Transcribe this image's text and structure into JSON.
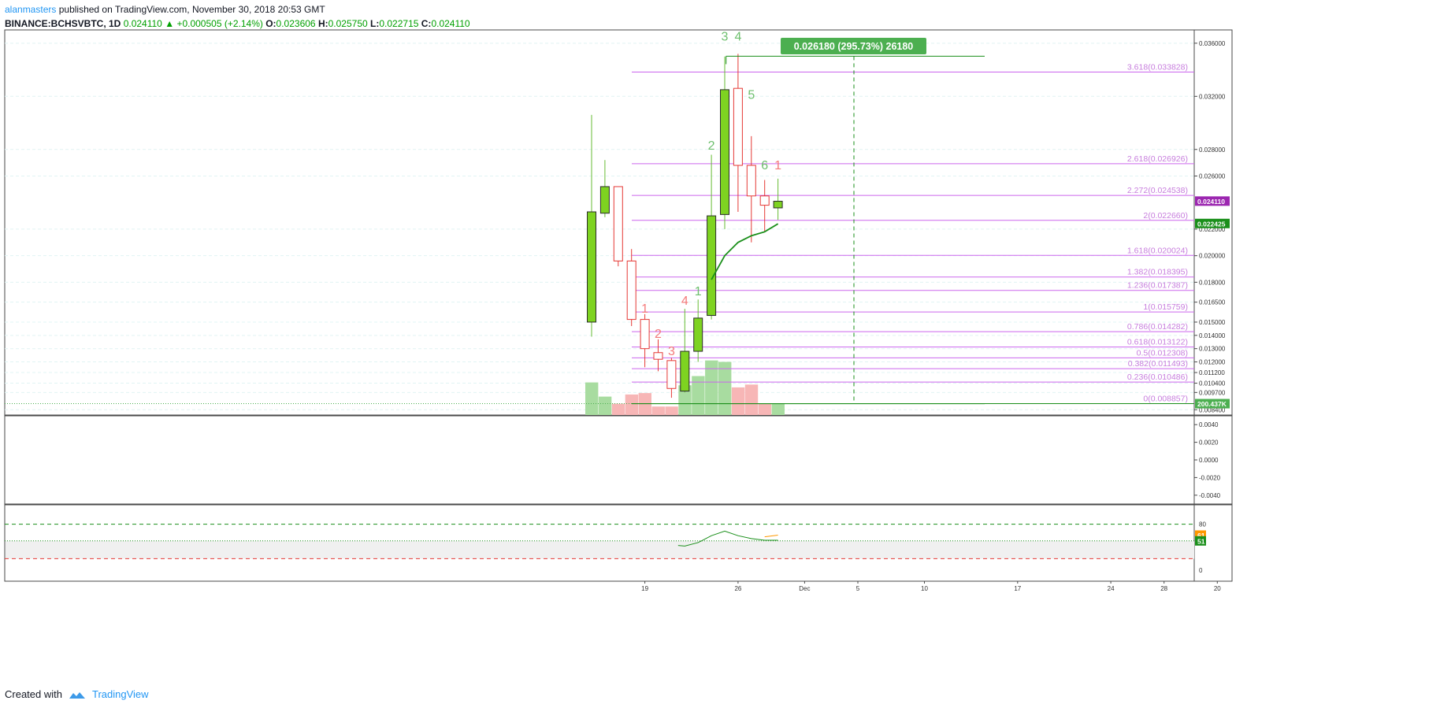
{
  "header": {
    "author": "alanmasters",
    "published_text": "published on TradingView.com, November 30, 2018 20:53 GMT",
    "symbol": "BINANCE:BCHSVBTC, 1D",
    "last": "0.024110",
    "change": "+0.000505 (+2.14%)",
    "o_label": "O:",
    "o": "0.023606",
    "h_label": "H:",
    "h": "0.025750",
    "l_label": "L:",
    "l": "0.022715",
    "c_label": "C:",
    "c": "0.024110"
  },
  "footer": {
    "created_with": "Created with",
    "brand": "TradingView"
  },
  "colors": {
    "up": "#7ed321",
    "down": "#e53935",
    "fib": "#cc66ee",
    "ema": "#1a8f1a",
    "grid": "#e0f4f4"
  },
  "chart_data": [
    {
      "type": "candlestick",
      "ylim": [
        0.008,
        0.037
      ],
      "x_ticks": [
        {
          "i": 4,
          "label": "19"
        },
        {
          "i": 11,
          "label": "26"
        },
        {
          "i": 16,
          "label": "Dec"
        },
        {
          "i": 20,
          "label": "5"
        },
        {
          "i": 25,
          "label": "10"
        },
        {
          "i": 32,
          "label": "17"
        },
        {
          "i": 39,
          "label": "24"
        },
        {
          "i": 43,
          "label": "28"
        },
        {
          "i": 47,
          "label": "20"
        }
      ],
      "y_ticks": [
        "0.036000",
        "0.032000",
        "0.028000",
        "0.026000",
        "0.022000",
        "0.020000",
        "0.018000",
        "0.016500",
        "0.015000",
        "0.014000",
        "0.013000",
        "0.012000",
        "0.011200",
        "0.010400",
        "0.009700",
        "0.008400"
      ],
      "candles": [
        {
          "i": 0,
          "o": 0.015,
          "h": 0.0306,
          "l": 0.0139,
          "c": 0.0233
        },
        {
          "i": 1,
          "o": 0.0232,
          "h": 0.0272,
          "l": 0.0229,
          "c": 0.0252
        },
        {
          "i": 2,
          "o": 0.0252,
          "h": 0.0252,
          "l": 0.0192,
          "c": 0.0196
        },
        {
          "i": 3,
          "o": 0.0196,
          "h": 0.0205,
          "l": 0.0147,
          "c": 0.0152
        },
        {
          "i": 4,
          "o": 0.0152,
          "h": 0.0156,
          "l": 0.0116,
          "c": 0.013
        },
        {
          "i": 5,
          "o": 0.0127,
          "h": 0.0137,
          "l": 0.0113,
          "c": 0.0122
        },
        {
          "i": 6,
          "o": 0.0121,
          "h": 0.0123,
          "l": 0.0093,
          "c": 0.01
        },
        {
          "i": 7,
          "o": 0.0098,
          "h": 0.016,
          "l": 0.0097,
          "c": 0.0128
        },
        {
          "i": 8,
          "o": 0.0128,
          "h": 0.0167,
          "l": 0.012,
          "c": 0.0153
        },
        {
          "i": 9,
          "o": 0.0155,
          "h": 0.0276,
          "l": 0.0152,
          "c": 0.023
        },
        {
          "i": 10,
          "o": 0.0231,
          "h": 0.035,
          "l": 0.022,
          "c": 0.0325
        },
        {
          "i": 11,
          "o": 0.0326,
          "h": 0.0352,
          "l": 0.0233,
          "c": 0.0268
        },
        {
          "i": 12,
          "o": 0.0268,
          "h": 0.029,
          "l": 0.021,
          "c": 0.0245
        },
        {
          "i": 13,
          "o": 0.0245,
          "h": 0.0257,
          "l": 0.0218,
          "c": 0.0238
        },
        {
          "i": 14,
          "o": 0.0236,
          "h": 0.0258,
          "l": 0.0227,
          "c": 0.0241
        }
      ],
      "ema": [
        {
          "i": 9,
          "v": 0.0182
        },
        {
          "i": 10,
          "v": 0.02
        },
        {
          "i": 11,
          "v": 0.021
        },
        {
          "i": 12,
          "v": 0.0215
        },
        {
          "i": 13,
          "v": 0.0218
        },
        {
          "i": 14,
          "v": 0.0224
        }
      ],
      "volume": [
        {
          "i": 0,
          "v": 46,
          "up": true
        },
        {
          "i": 1,
          "v": 26,
          "up": true
        },
        {
          "i": 2,
          "v": 16,
          "up": false
        },
        {
          "i": 3,
          "v": 29,
          "up": false
        },
        {
          "i": 4,
          "v": 31,
          "up": false
        },
        {
          "i": 5,
          "v": 12,
          "up": false
        },
        {
          "i": 6,
          "v": 12,
          "up": false
        },
        {
          "i": 7,
          "v": 42,
          "up": true
        },
        {
          "i": 8,
          "v": 55,
          "up": true
        },
        {
          "i": 9,
          "v": 77,
          "up": true
        },
        {
          "i": 10,
          "v": 75,
          "up": true
        },
        {
          "i": 11,
          "v": 39,
          "up": false
        },
        {
          "i": 12,
          "v": 43,
          "up": false
        },
        {
          "i": 13,
          "v": 16,
          "up": false
        },
        {
          "i": 14,
          "v": 16,
          "up": true
        }
      ],
      "fib_levels": [
        {
          "v": 0.033828,
          "label": "3.618(0.033828)"
        },
        {
          "v": 0.026926,
          "label": "2.618(0.026926)"
        },
        {
          "v": 0.024538,
          "label": "2.272(0.024538)"
        },
        {
          "v": 0.02266,
          "label": "2(0.022660)"
        },
        {
          "v": 0.020024,
          "label": "1.618(0.020024)"
        },
        {
          "v": 0.018395,
          "label": "1.382(0.018395)"
        },
        {
          "v": 0.017387,
          "label": "1.236(0.017387)"
        },
        {
          "v": 0.015759,
          "label": "1(0.015759)"
        },
        {
          "v": 0.014282,
          "label": "0.786(0.014282)"
        },
        {
          "v": 0.013122,
          "label": "0.618(0.013122)"
        },
        {
          "v": 0.012308,
          "label": "0.5(0.012308)"
        },
        {
          "v": 0.011493,
          "label": "0.382(0.011493)"
        },
        {
          "v": 0.010486,
          "label": "0.236(0.010486)"
        },
        {
          "v": 0.008857,
          "label": "0(0.008857)"
        }
      ],
      "measure_label": "0.026180 (295.73%) 26180",
      "price_tags": [
        {
          "v": 0.02411,
          "text": "0.024110",
          "color": "#9c27b0"
        },
        {
          "v": 0.022425,
          "text": "0.022425",
          "color": "#1a8f1a"
        },
        {
          "v": 0.008857,
          "text": "200.437K",
          "color": "#4caf50"
        }
      ],
      "td_counts": [
        {
          "i": 4,
          "v": 0.0157,
          "text": "1",
          "color": "#f47a7a"
        },
        {
          "i": 5,
          "v": 0.0138,
          "text": "2",
          "color": "#f47a7a"
        },
        {
          "i": 6,
          "v": 0.0125,
          "text": "3",
          "color": "#f47a7a"
        },
        {
          "i": 7,
          "v": 0.0163,
          "text": "4",
          "color": "#f47a7a"
        },
        {
          "i": 8,
          "v": 0.017,
          "text": "1",
          "color": "#6dbf6d"
        },
        {
          "i": 9,
          "v": 0.028,
          "text": "2",
          "color": "#6dbf6d"
        },
        {
          "i": 10,
          "v": 0.0362,
          "text": "3",
          "color": "#6dbf6d"
        },
        {
          "i": 11,
          "v": 0.0362,
          "text": "4",
          "color": "#6dbf6d"
        },
        {
          "i": 12,
          "v": 0.0318,
          "text": "5",
          "color": "#6dbf6d"
        },
        {
          "i": 13,
          "v": 0.0265,
          "text": "6",
          "color": "#6dbf6d"
        },
        {
          "i": 14,
          "v": 0.0265,
          "text": "1",
          "color": "#f47a7a"
        }
      ]
    },
    {
      "type": "line",
      "name": "oscillator",
      "ylim": [
        -0.005,
        0.005
      ],
      "y_ticks": [
        "0.0040",
        "0.0020",
        "0.0000",
        "-0.0020",
        "-0.0040"
      ]
    },
    {
      "type": "line",
      "name": "rsi",
      "ylim": [
        0,
        100
      ],
      "y_ticks": [
        "80",
        "0"
      ],
      "bands": [
        80,
        20
      ],
      "tags": [
        {
          "v": 61,
          "text": "61",
          "color": "#ff9800"
        },
        {
          "v": 51,
          "text": "51",
          "color": "#1a8f1a"
        }
      ],
      "series": [
        {
          "i": 6.5,
          "v": 43
        },
        {
          "i": 7,
          "v": 42
        },
        {
          "i": 8,
          "v": 48
        },
        {
          "i": 9,
          "v": 60
        },
        {
          "i": 10,
          "v": 68
        },
        {
          "i": 11,
          "v": 60
        },
        {
          "i": 12,
          "v": 55
        },
        {
          "i": 13,
          "v": 52
        },
        {
          "i": 14,
          "v": 52
        }
      ],
      "signal": [
        {
          "i": 13,
          "v": 58
        },
        {
          "i": 14,
          "v": 61
        }
      ]
    }
  ]
}
